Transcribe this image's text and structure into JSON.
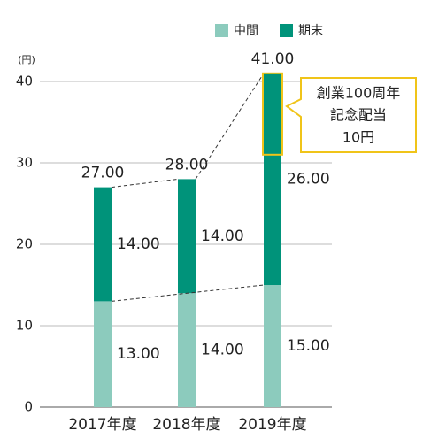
{
  "chart_data": {
    "type": "stacked_bar",
    "y_unit": "(円)",
    "categories": [
      "2017年度",
      "2018年度",
      "2019年度"
    ],
    "series": [
      {
        "name": "中間",
        "color": "#8ccbbd",
        "values": [
          13,
          14,
          15
        ],
        "value_labels": [
          "13.00",
          "14.00",
          "15.00"
        ]
      },
      {
        "name": "期末",
        "color": "#00937a",
        "values": [
          14,
          14,
          26
        ],
        "value_labels": [
          "14.00",
          "14.00",
          "26.00"
        ]
      }
    ],
    "totals": [
      27,
      28,
      41
    ],
    "total_labels": [
      "27.00",
      "28.00",
      "41.00"
    ],
    "ylim": [
      0,
      40
    ],
    "yticks": [
      0,
      10,
      20,
      30,
      40
    ],
    "grid": true,
    "legend": "top-right",
    "annotation": {
      "lines": [
        "創業100周年",
        "記念配当",
        "10円"
      ],
      "value": 10,
      "color": "#f0c419"
    }
  }
}
